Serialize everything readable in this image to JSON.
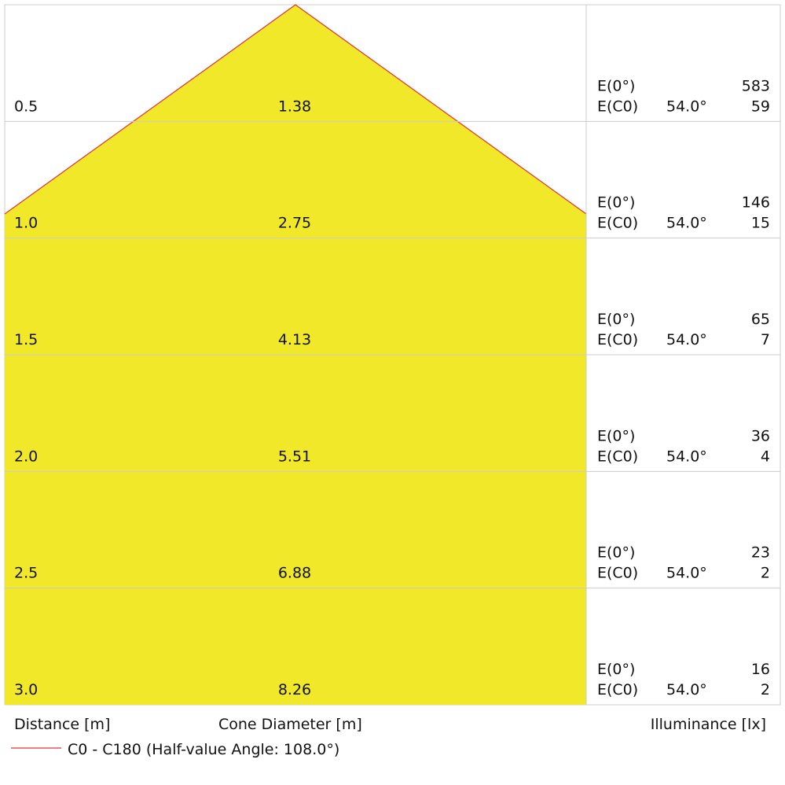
{
  "rows": [
    {
      "distance": "0.5",
      "diameter": "1.38",
      "e0_label": "E(0°)",
      "e0": "583",
      "ec0_label": "E(C0)",
      "angle": "54.0°",
      "ec0": "59"
    },
    {
      "distance": "1.0",
      "diameter": "2.75",
      "e0_label": "E(0°)",
      "e0": "146",
      "ec0_label": "E(C0)",
      "angle": "54.0°",
      "ec0": "15"
    },
    {
      "distance": "1.5",
      "diameter": "4.13",
      "e0_label": "E(0°)",
      "e0": "65",
      "ec0_label": "E(C0)",
      "angle": "54.0°",
      "ec0": "7"
    },
    {
      "distance": "2.0",
      "diameter": "5.51",
      "e0_label": "E(0°)",
      "e0": "36",
      "ec0_label": "E(C0)",
      "angle": "54.0°",
      "ec0": "4"
    },
    {
      "distance": "2.5",
      "diameter": "6.88",
      "e0_label": "E(0°)",
      "e0": "23",
      "ec0_label": "E(C0)",
      "angle": "54.0°",
      "ec0": "2"
    },
    {
      "distance": "3.0",
      "diameter": "8.26",
      "e0_label": "E(0°)",
      "e0": "16",
      "ec0_label": "E(C0)",
      "angle": "54.0°",
      "ec0": "2"
    }
  ],
  "footer": {
    "distance": "Distance [m]",
    "diameter": "Cone Diameter [m]",
    "illuminance": "Illuminance [lx]"
  },
  "legend": "C0 - C180 (Half-value Angle: 108.0°)"
}
